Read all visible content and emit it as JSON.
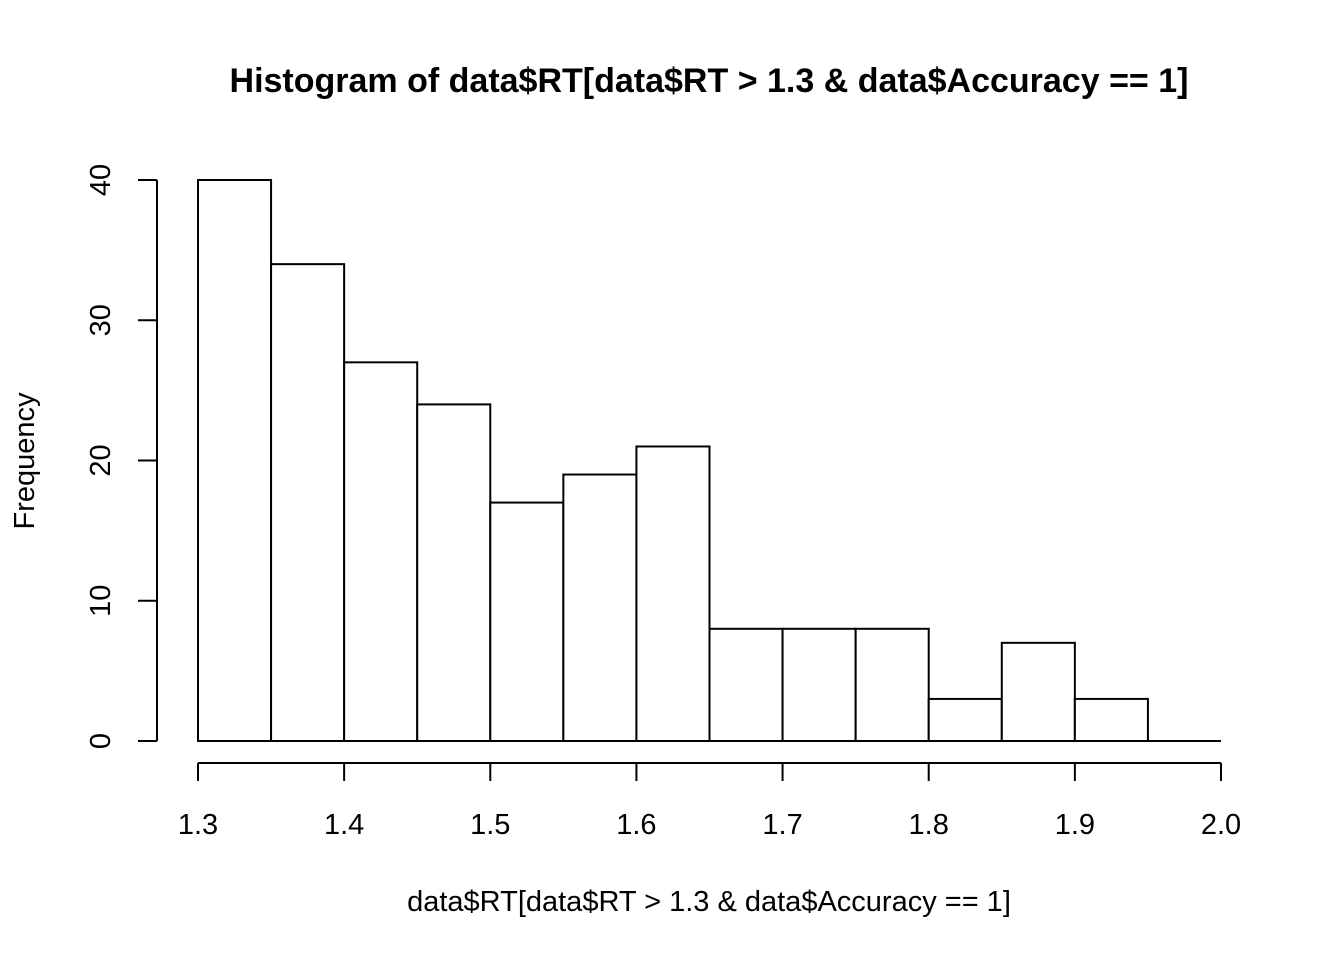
{
  "chart_data": {
    "type": "bar",
    "title": "Histogram of data$RT[data$RT > 1.3 & data$Accuracy == 1]",
    "xlabel": "data$RT[data$RT > 1.3 & data$Accuracy == 1]",
    "ylabel": "Frequency",
    "bin_edges": [
      1.3,
      1.35,
      1.4,
      1.45,
      1.5,
      1.55,
      1.6,
      1.65,
      1.7,
      1.75,
      1.8,
      1.85,
      1.9,
      1.95,
      2.0
    ],
    "values": [
      40,
      34,
      27,
      24,
      17,
      19,
      21,
      8,
      8,
      8,
      3,
      7,
      3,
      0
    ],
    "xlim": [
      1.3,
      2.0
    ],
    "ylim": [
      0,
      40
    ],
    "x_ticks": [
      "1.3",
      "1.4",
      "1.5",
      "1.6",
      "1.7",
      "1.8",
      "1.9",
      "2.0"
    ],
    "y_ticks": [
      "0",
      "10",
      "20",
      "30",
      "40"
    ],
    "grid": false,
    "legend": "none",
    "bar_fill": "#ffffff",
    "bar_stroke": "#000000"
  }
}
